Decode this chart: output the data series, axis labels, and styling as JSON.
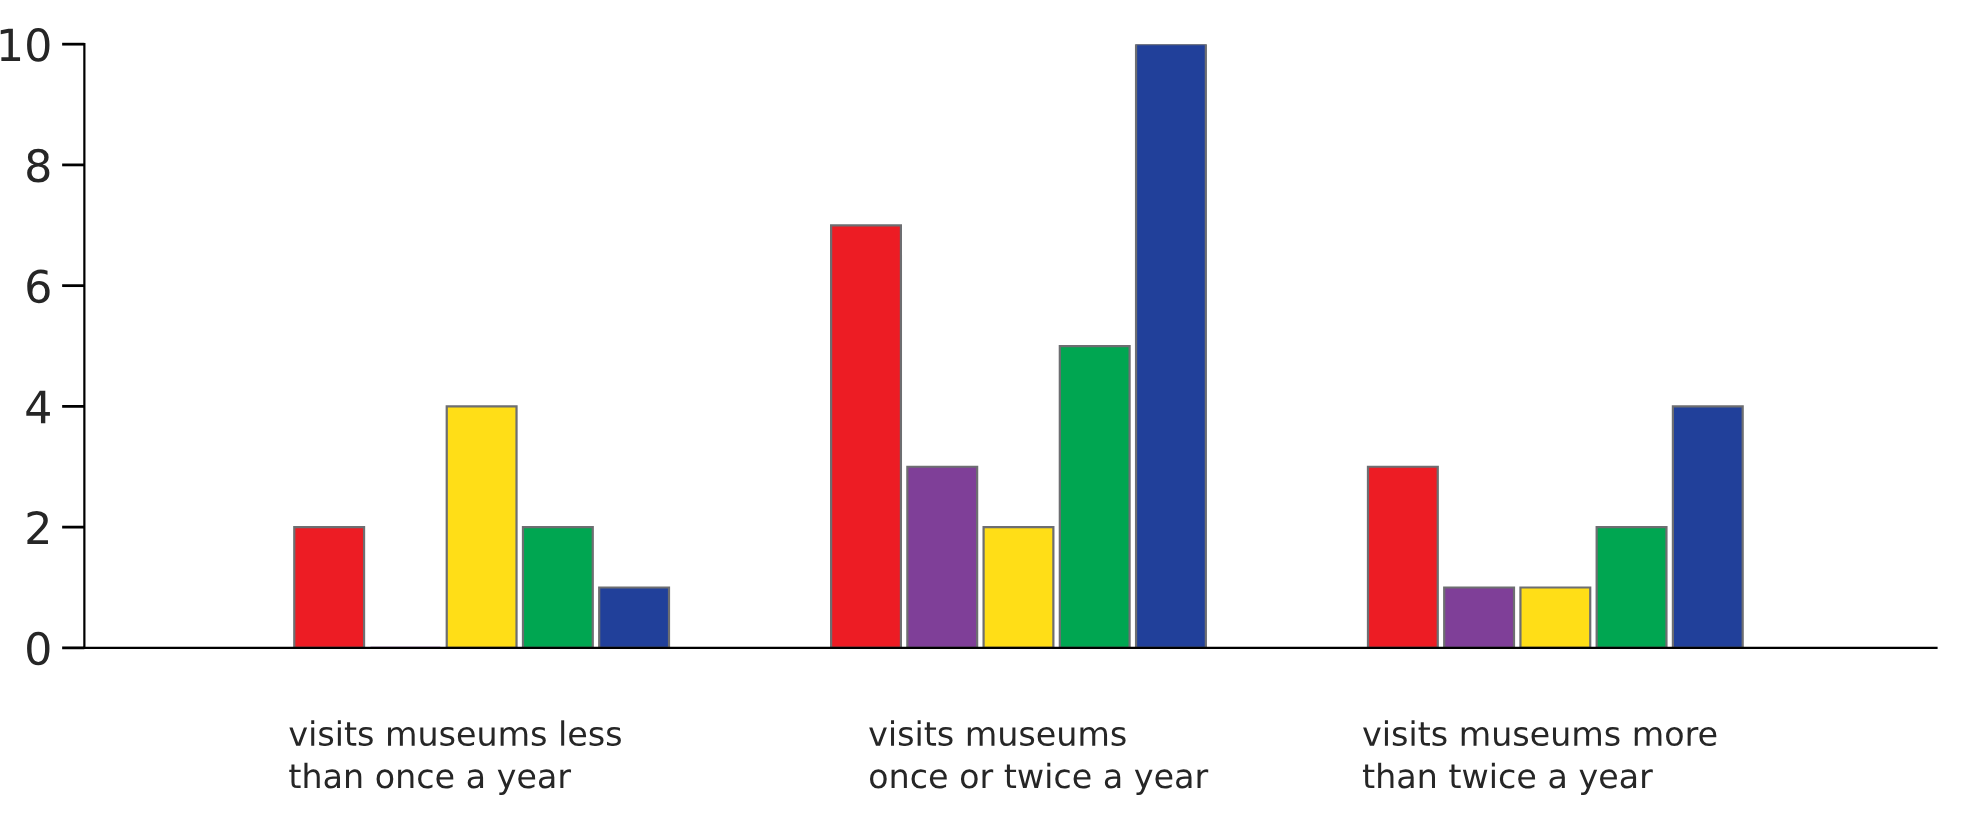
{
  "chart_data": {
    "type": "bar",
    "categories": [
      "visits museums less\nthan once a year",
      "visits museums\nonce or twice a year",
      "visits museums more\nthan twice a year"
    ],
    "series": [
      {
        "color": "#ed1c24",
        "values": [
          2,
          7,
          3
        ]
      },
      {
        "color": "#7f3f98",
        "values": [
          0,
          3,
          1
        ]
      },
      {
        "color": "#ffde17",
        "values": [
          4,
          2,
          1
        ]
      },
      {
        "color": "#00a651",
        "values": [
          2,
          5,
          2
        ]
      },
      {
        "color": "#21409a",
        "values": [
          1,
          10,
          4
        ]
      }
    ],
    "ylim": [
      0,
      10
    ],
    "yticks": [
      0,
      2,
      4,
      6,
      8,
      10
    ],
    "grid": false,
    "legend": false
  }
}
